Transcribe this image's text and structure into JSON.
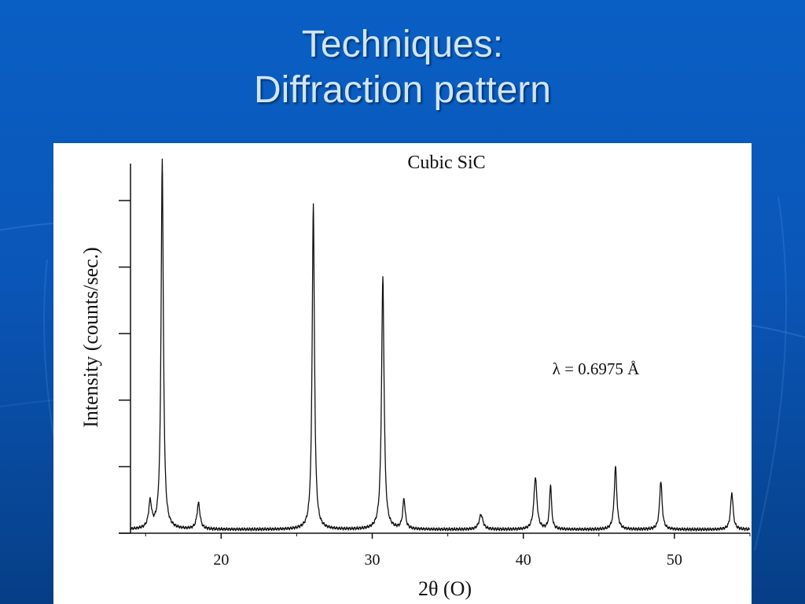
{
  "slide": {
    "title_line1": "Techniques:",
    "title_line2": "Diffraction pattern"
  },
  "colors": {
    "background": "#0a56b8",
    "title_text": "#cfe6ff",
    "plot_line": "#111111"
  },
  "chart_data": {
    "type": "line",
    "title": "Cubic SiC",
    "xlabel": "2θ (O)",
    "ylabel": "Intensity (counts/sec.)",
    "annotation": "λ = 0.6975 Å",
    "xlim": [
      14,
      55
    ],
    "ylim": [
      0,
      100
    ],
    "xticks": [
      20,
      30,
      40,
      50
    ],
    "yticks_labeled": false,
    "baseline": 1,
    "peaks": [
      {
        "x": 15.3,
        "y": 7,
        "w": 0.12
      },
      {
        "x": 16.1,
        "y": 100,
        "w": 0.09
      },
      {
        "x": 18.5,
        "y": 7,
        "w": 0.12
      },
      {
        "x": 26.1,
        "y": 88,
        "w": 0.09
      },
      {
        "x": 30.7,
        "y": 68,
        "w": 0.1
      },
      {
        "x": 32.1,
        "y": 8,
        "w": 0.1
      },
      {
        "x": 37.2,
        "y": 4,
        "w": 0.15
      },
      {
        "x": 40.8,
        "y": 14,
        "w": 0.12
      },
      {
        "x": 41.8,
        "y": 12,
        "w": 0.08
      },
      {
        "x": 46.1,
        "y": 17,
        "w": 0.1
      },
      {
        "x": 49.1,
        "y": 13,
        "w": 0.1
      },
      {
        "x": 53.8,
        "y": 10,
        "w": 0.1
      }
    ]
  }
}
